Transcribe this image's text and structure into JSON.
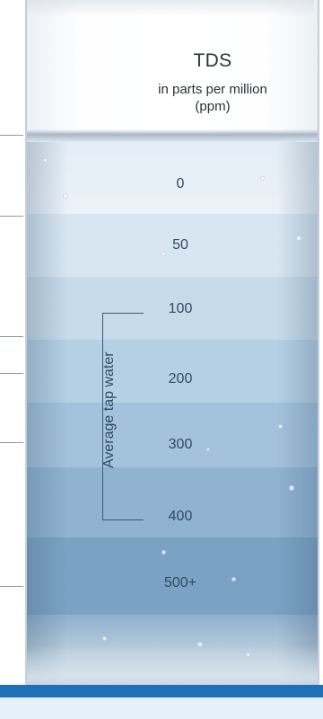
{
  "title": "TDS",
  "subtitle_line1": "in parts per million",
  "subtitle_line2": "(ppm)",
  "levels": [
    "0",
    "50",
    "100",
    "200",
    "300",
    "400",
    "500+"
  ],
  "range_label": "Average tap water",
  "colors": {
    "accent_bar": "#1f70b8",
    "bottom_strip": "#e4f1fa",
    "text": "#2f4a62"
  }
}
